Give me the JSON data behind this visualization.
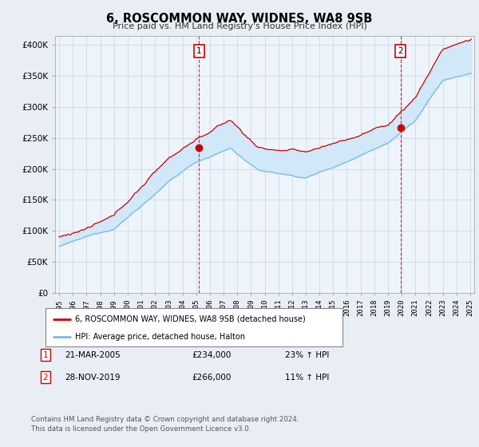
{
  "title": "6, ROSCOMMON WAY, WIDNES, WA8 9SB",
  "subtitle": "Price paid vs. HM Land Registry's House Price Index (HPI)",
  "ytick_values": [
    0,
    50000,
    100000,
    150000,
    200000,
    250000,
    300000,
    350000,
    400000
  ],
  "ylim": [
    0,
    415000
  ],
  "xlim_start": 1994.7,
  "xlim_end": 2025.3,
  "hpi_color": "#7ab8e8",
  "hpi_fill_color": "#d0e8f8",
  "price_color": "#cc0000",
  "marker1_x": 2005.21,
  "marker1_y": 234000,
  "marker2_x": 2019.92,
  "marker2_y": 266000,
  "legend_label1": "6, ROSCOMMON WAY, WIDNES, WA8 9SB (detached house)",
  "legend_label2": "HPI: Average price, detached house, Halton",
  "annotation1_date": "21-MAR-2005",
  "annotation1_price": "£234,000",
  "annotation1_hpi": "23% ↑ HPI",
  "annotation2_date": "28-NOV-2019",
  "annotation2_price": "£266,000",
  "annotation2_hpi": "11% ↑ HPI",
  "footer": "Contains HM Land Registry data © Crown copyright and database right 2024.\nThis data is licensed under the Open Government Licence v3.0.",
  "background_color": "#e8eef4",
  "plot_bg_color": "#eef4fb",
  "grid_color": "#c8d4e0"
}
